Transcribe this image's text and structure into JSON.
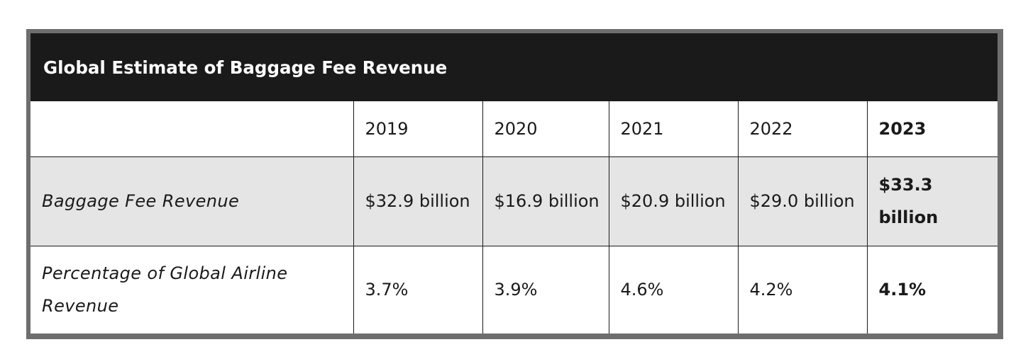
{
  "chart_data": {
    "type": "table",
    "title": "Global Estimate of Baggage Fee Revenue",
    "columns": [
      "",
      "2019",
      "2020",
      "2021",
      "2022",
      "2023"
    ],
    "highlight_column": "2023",
    "rows": [
      {
        "label": "Baggage Fee Revenue",
        "values": [
          "$32.9 billion",
          "$16.9 billion",
          "$20.9 billion",
          "$29.0 billion",
          "$33.3 billion"
        ]
      },
      {
        "label": "Percentage of Global Airline Revenue",
        "values": [
          "3.7%",
          "3.9%",
          "4.6%",
          "4.2%",
          "4.1%"
        ]
      }
    ],
    "colors": {
      "title_background": "#1a1a1a",
      "title_text": "#ffffff",
      "shaded_row": "#e5e5e5",
      "border": "#1a1a1a",
      "outer_frame": "#6e6e6e"
    }
  }
}
